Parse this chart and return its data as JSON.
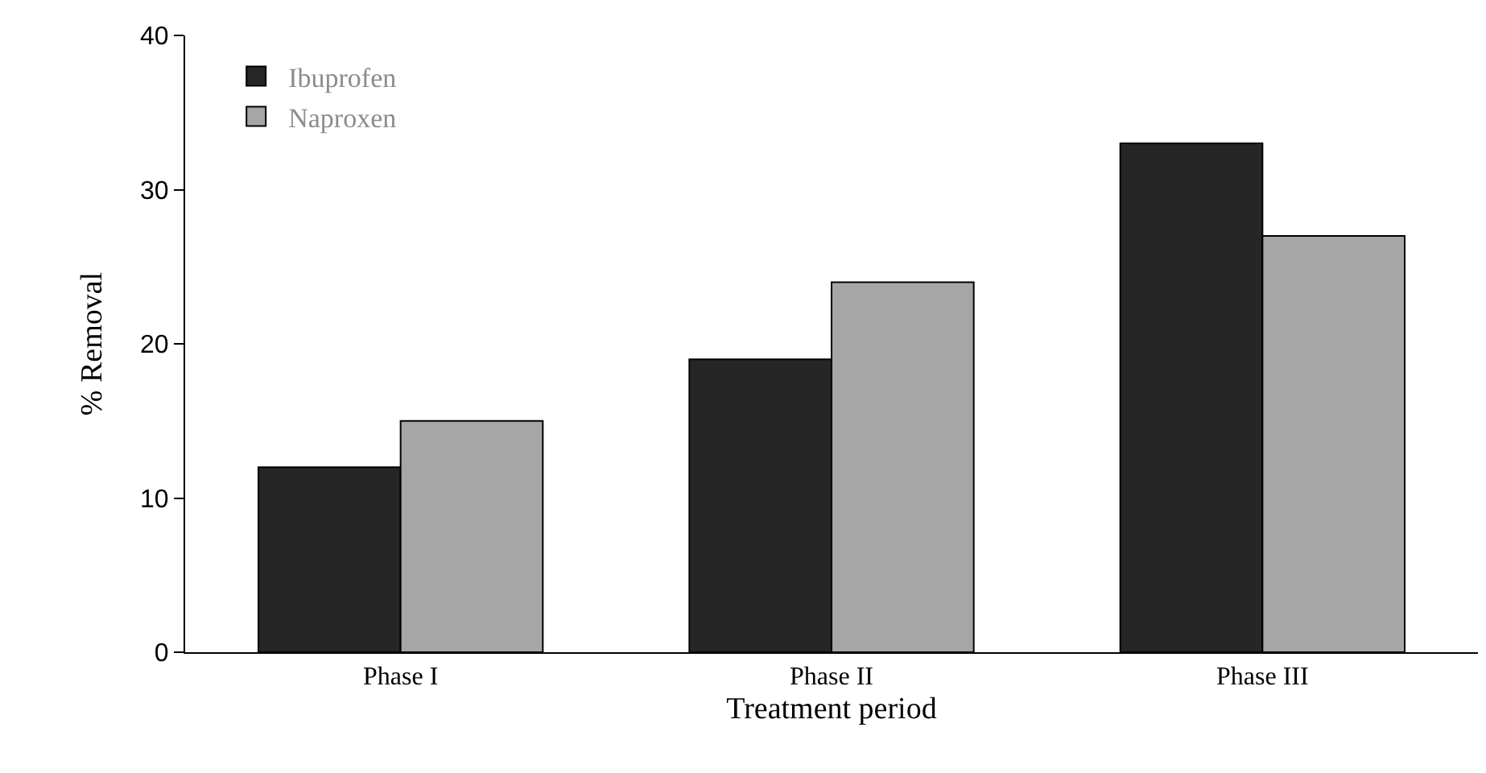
{
  "chart_data": {
    "type": "bar",
    "xlabel": "Treatment period",
    "ylabel": "% Removal",
    "categories": [
      "Phase I",
      "Phase II",
      "Phase III"
    ],
    "series": [
      {
        "name": "Ibuprofen",
        "color": "#262626",
        "values": [
          12,
          19,
          33
        ]
      },
      {
        "name": "Naproxen",
        "color": "#a6a6a6",
        "values": [
          15,
          24,
          27
        ]
      }
    ],
    "ylim": [
      0,
      40
    ],
    "yticks": [
      0,
      10,
      20,
      30,
      40
    ],
    "grid": false,
    "legend": "top left"
  }
}
